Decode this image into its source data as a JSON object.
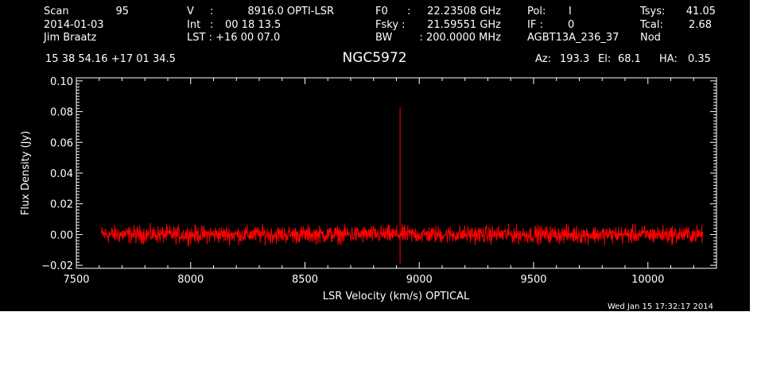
{
  "header": {
    "scan_label": "Scan",
    "scan_value": "95",
    "date": "2014-01-03",
    "observer": "Jim Braatz",
    "velocity_label": "V",
    "velocity_sep": ":",
    "velocity_value": "8916.0 OPTI-LSR",
    "int_label": "Int",
    "int_sep": ":",
    "int_value": "00 18 13.5",
    "lst_label": "LST : +16 00 07.0",
    "f0_label": "F0",
    "f0_sep": ":",
    "f0_value": "22.23508 GHz",
    "fsky_label": "Fsky :",
    "fsky_value": "21.59551 GHz",
    "bw_label": "BW",
    "bw_value": ": 200.0000 MHz",
    "pol_label": "Pol:",
    "pol_value": "I",
    "if_label": "IF :",
    "if_value": "0",
    "project": "AGBT13A_236_37",
    "tsys_label": "Tsys:",
    "tsys_value": "41.05",
    "tcal_label": "Tcal:",
    "tcal_value": "2.68",
    "mode": "Nod",
    "coords": "15 38 54.16  +17 01 34.5",
    "source": "NGC5972",
    "az_label": "Az:",
    "az_value": "193.3",
    "el_label": "El:",
    "el_value": "68.1",
    "ha_label": "HA:",
    "ha_value": "0.35"
  },
  "footer": {
    "timestamp": "Wed Jan 15 17:32:17 2014"
  },
  "colors": {
    "background": "#000000",
    "foreground": "#ffffff",
    "series": "#ff0000"
  },
  "chart_data": {
    "type": "line",
    "title": "NGC5972",
    "xlabel": "LSR Velocity (km/s) OPTICAL",
    "ylabel": "Flux Density (Jy)",
    "xlim": [
      7500,
      10300
    ],
    "ylim": [
      -0.022,
      0.102
    ],
    "x_ticks": [
      7500,
      8000,
      8500,
      9000,
      9500,
      10000
    ],
    "x_tick_labels": [
      "7500",
      "8000",
      "8500",
      "9000",
      "9500",
      "10000"
    ],
    "y_ticks": [
      -0.02,
      0.0,
      0.02,
      0.04,
      0.06,
      0.08,
      0.1
    ],
    "y_tick_labels": [
      "−0.02",
      "0.00",
      "0.02",
      "0.04",
      "0.06",
      "0.08",
      "0.10"
    ],
    "grid": false,
    "series": [
      {
        "color": "#ff0000",
        "x_range": [
          7610,
          10240
        ],
        "baseline": 0.0,
        "noise_amplitude": 0.012,
        "peaks": [
          {
            "x": 8916,
            "y": 0.083
          },
          {
            "x": 8916,
            "y": -0.019
          }
        ]
      }
    ]
  }
}
